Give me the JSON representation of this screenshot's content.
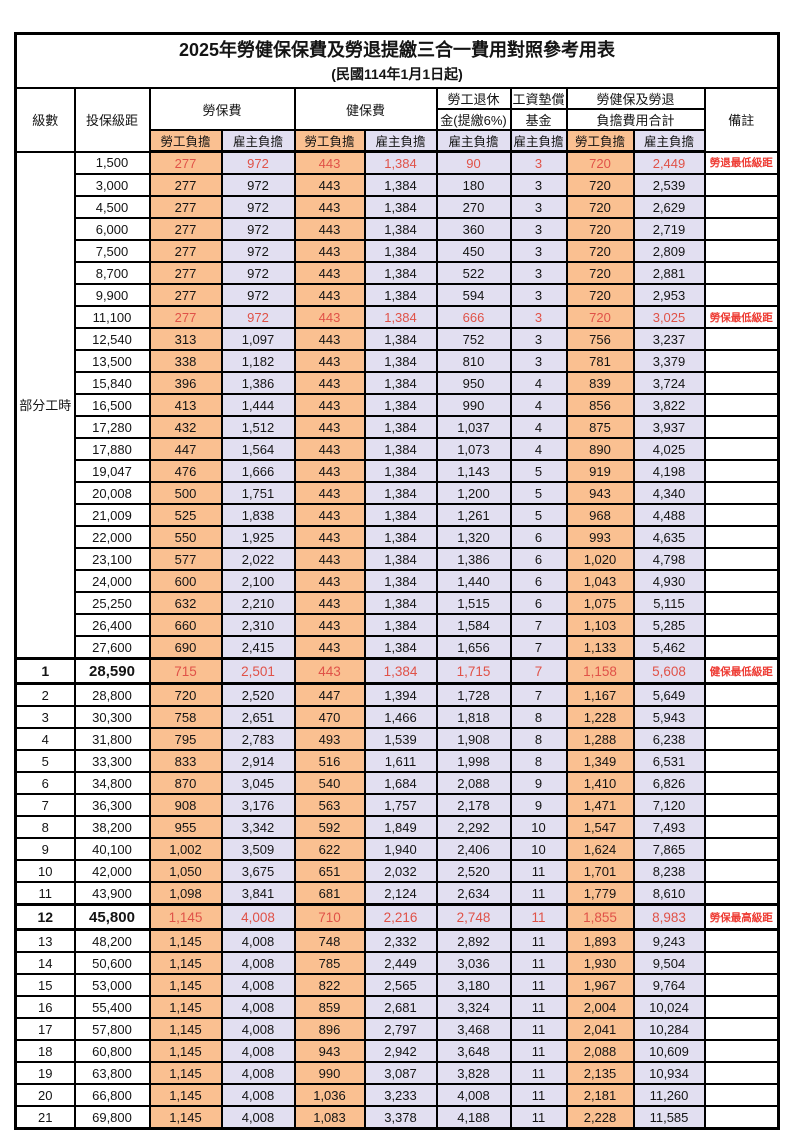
{
  "page": {
    "title": "2025年勞健保保費及勞退提繳三合一費用對照參考用表",
    "subtitle": "(民國114年1月1日起)"
  },
  "colors": {
    "employee_col_bg": "#FAC091",
    "employer_col_bg": "#E2DFF1",
    "highlight_value_red": "#E05248",
    "remark_red": "#EE3B33",
    "border_black": "#000000"
  },
  "table": {
    "headers": {
      "level": "級數",
      "salary": "投保級距",
      "labor": "勞保費",
      "health": "健保費",
      "pension_line1": "勞工退休",
      "pension_line2": "金(提繳6%)",
      "wage_fund_line1": "工資墊償",
      "wage_fund_line2": "基金",
      "total_line1": "勞健保及勞退",
      "total_line2": "負擔費用合計",
      "note": "備註"
    },
    "subheaders": {
      "employee": "勞工負擔",
      "employer": "雇主負擔"
    },
    "part_time_label": "部分工時",
    "part_time_row_count": 23,
    "rows": [
      {
        "level": "",
        "salary": "1,500",
        "lab_e": "277",
        "lab_r": "972",
        "hea_e": "443",
        "hea_r": "1,384",
        "pen": "90",
        "wage": "3",
        "tot_e": "720",
        "tot_r": "2,449",
        "note": "勞退最低級距",
        "red": true,
        "special": false
      },
      {
        "level": "",
        "salary": "3,000",
        "lab_e": "277",
        "lab_r": "972",
        "hea_e": "443",
        "hea_r": "1,384",
        "pen": "180",
        "wage": "3",
        "tot_e": "720",
        "tot_r": "2,539",
        "note": "",
        "red": false,
        "special": false
      },
      {
        "level": "",
        "salary": "4,500",
        "lab_e": "277",
        "lab_r": "972",
        "hea_e": "443",
        "hea_r": "1,384",
        "pen": "270",
        "wage": "3",
        "tot_e": "720",
        "tot_r": "2,629",
        "note": "",
        "red": false,
        "special": false
      },
      {
        "level": "",
        "salary": "6,000",
        "lab_e": "277",
        "lab_r": "972",
        "hea_e": "443",
        "hea_r": "1,384",
        "pen": "360",
        "wage": "3",
        "tot_e": "720",
        "tot_r": "2,719",
        "note": "",
        "red": false,
        "special": false
      },
      {
        "level": "",
        "salary": "7,500",
        "lab_e": "277",
        "lab_r": "972",
        "hea_e": "443",
        "hea_r": "1,384",
        "pen": "450",
        "wage": "3",
        "tot_e": "720",
        "tot_r": "2,809",
        "note": "",
        "red": false,
        "special": false
      },
      {
        "level": "",
        "salary": "8,700",
        "lab_e": "277",
        "lab_r": "972",
        "hea_e": "443",
        "hea_r": "1,384",
        "pen": "522",
        "wage": "3",
        "tot_e": "720",
        "tot_r": "2,881",
        "note": "",
        "red": false,
        "special": false
      },
      {
        "level": "",
        "salary": "9,900",
        "lab_e": "277",
        "lab_r": "972",
        "hea_e": "443",
        "hea_r": "1,384",
        "pen": "594",
        "wage": "3",
        "tot_e": "720",
        "tot_r": "2,953",
        "note": "",
        "red": false,
        "special": false
      },
      {
        "level": "",
        "salary": "11,100",
        "lab_e": "277",
        "lab_r": "972",
        "hea_e": "443",
        "hea_r": "1,384",
        "pen": "666",
        "wage": "3",
        "tot_e": "720",
        "tot_r": "3,025",
        "note": "勞保最低級距",
        "red": true,
        "special": false
      },
      {
        "level": "",
        "salary": "12,540",
        "lab_e": "313",
        "lab_r": "1,097",
        "hea_e": "443",
        "hea_r": "1,384",
        "pen": "752",
        "wage": "3",
        "tot_e": "756",
        "tot_r": "3,237",
        "note": "",
        "red": false,
        "special": false
      },
      {
        "level": "",
        "salary": "13,500",
        "lab_e": "338",
        "lab_r": "1,182",
        "hea_e": "443",
        "hea_r": "1,384",
        "pen": "810",
        "wage": "3",
        "tot_e": "781",
        "tot_r": "3,379",
        "note": "",
        "red": false,
        "special": false
      },
      {
        "level": "",
        "salary": "15,840",
        "lab_e": "396",
        "lab_r": "1,386",
        "hea_e": "443",
        "hea_r": "1,384",
        "pen": "950",
        "wage": "4",
        "tot_e": "839",
        "tot_r": "3,724",
        "note": "",
        "red": false,
        "special": false
      },
      {
        "level": "",
        "salary": "16,500",
        "lab_e": "413",
        "lab_r": "1,444",
        "hea_e": "443",
        "hea_r": "1,384",
        "pen": "990",
        "wage": "4",
        "tot_e": "856",
        "tot_r": "3,822",
        "note": "",
        "red": false,
        "special": false
      },
      {
        "level": "",
        "salary": "17,280",
        "lab_e": "432",
        "lab_r": "1,512",
        "hea_e": "443",
        "hea_r": "1,384",
        "pen": "1,037",
        "wage": "4",
        "tot_e": "875",
        "tot_r": "3,937",
        "note": "",
        "red": false,
        "special": false
      },
      {
        "level": "",
        "salary": "17,880",
        "lab_e": "447",
        "lab_r": "1,564",
        "hea_e": "443",
        "hea_r": "1,384",
        "pen": "1,073",
        "wage": "4",
        "tot_e": "890",
        "tot_r": "4,025",
        "note": "",
        "red": false,
        "special": false
      },
      {
        "level": "",
        "salary": "19,047",
        "lab_e": "476",
        "lab_r": "1,666",
        "hea_e": "443",
        "hea_r": "1,384",
        "pen": "1,143",
        "wage": "5",
        "tot_e": "919",
        "tot_r": "4,198",
        "note": "",
        "red": false,
        "special": false
      },
      {
        "level": "",
        "salary": "20,008",
        "lab_e": "500",
        "lab_r": "1,751",
        "hea_e": "443",
        "hea_r": "1,384",
        "pen": "1,200",
        "wage": "5",
        "tot_e": "943",
        "tot_r": "4,340",
        "note": "",
        "red": false,
        "special": false
      },
      {
        "level": "",
        "salary": "21,009",
        "lab_e": "525",
        "lab_r": "1,838",
        "hea_e": "443",
        "hea_r": "1,384",
        "pen": "1,261",
        "wage": "5",
        "tot_e": "968",
        "tot_r": "4,488",
        "note": "",
        "red": false,
        "special": false
      },
      {
        "level": "",
        "salary": "22,000",
        "lab_e": "550",
        "lab_r": "1,925",
        "hea_e": "443",
        "hea_r": "1,384",
        "pen": "1,320",
        "wage": "6",
        "tot_e": "993",
        "tot_r": "4,635",
        "note": "",
        "red": false,
        "special": false
      },
      {
        "level": "",
        "salary": "23,100",
        "lab_e": "577",
        "lab_r": "2,022",
        "hea_e": "443",
        "hea_r": "1,384",
        "pen": "1,386",
        "wage": "6",
        "tot_e": "1,020",
        "tot_r": "4,798",
        "note": "",
        "red": false,
        "special": false
      },
      {
        "level": "",
        "salary": "24,000",
        "lab_e": "600",
        "lab_r": "2,100",
        "hea_e": "443",
        "hea_r": "1,384",
        "pen": "1,440",
        "wage": "6",
        "tot_e": "1,043",
        "tot_r": "4,930",
        "note": "",
        "red": false,
        "special": false
      },
      {
        "level": "",
        "salary": "25,250",
        "lab_e": "632",
        "lab_r": "2,210",
        "hea_e": "443",
        "hea_r": "1,384",
        "pen": "1,515",
        "wage": "6",
        "tot_e": "1,075",
        "tot_r": "5,115",
        "note": "",
        "red": false,
        "special": false
      },
      {
        "level": "",
        "salary": "26,400",
        "lab_e": "660",
        "lab_r": "2,310",
        "hea_e": "443",
        "hea_r": "1,384",
        "pen": "1,584",
        "wage": "7",
        "tot_e": "1,103",
        "tot_r": "5,285",
        "note": "",
        "red": false,
        "special": false
      },
      {
        "level": "",
        "salary": "27,600",
        "lab_e": "690",
        "lab_r": "2,415",
        "hea_e": "443",
        "hea_r": "1,384",
        "pen": "1,656",
        "wage": "7",
        "tot_e": "1,133",
        "tot_r": "5,462",
        "note": "",
        "red": false,
        "special": false
      },
      {
        "level": "1",
        "salary": "28,590",
        "lab_e": "715",
        "lab_r": "2,501",
        "hea_e": "443",
        "hea_r": "1,384",
        "pen": "1,715",
        "wage": "7",
        "tot_e": "1,158",
        "tot_r": "5,608",
        "note": "健保最低級距",
        "red": true,
        "special": true
      },
      {
        "level": "2",
        "salary": "28,800",
        "lab_e": "720",
        "lab_r": "2,520",
        "hea_e": "447",
        "hea_r": "1,394",
        "pen": "1,728",
        "wage": "7",
        "tot_e": "1,167",
        "tot_r": "5,649",
        "note": "",
        "red": false,
        "special": false
      },
      {
        "level": "3",
        "salary": "30,300",
        "lab_e": "758",
        "lab_r": "2,651",
        "hea_e": "470",
        "hea_r": "1,466",
        "pen": "1,818",
        "wage": "8",
        "tot_e": "1,228",
        "tot_r": "5,943",
        "note": "",
        "red": false,
        "special": false
      },
      {
        "level": "4",
        "salary": "31,800",
        "lab_e": "795",
        "lab_r": "2,783",
        "hea_e": "493",
        "hea_r": "1,539",
        "pen": "1,908",
        "wage": "8",
        "tot_e": "1,288",
        "tot_r": "6,238",
        "note": "",
        "red": false,
        "special": false
      },
      {
        "level": "5",
        "salary": "33,300",
        "lab_e": "833",
        "lab_r": "2,914",
        "hea_e": "516",
        "hea_r": "1,611",
        "pen": "1,998",
        "wage": "8",
        "tot_e": "1,349",
        "tot_r": "6,531",
        "note": "",
        "red": false,
        "special": false
      },
      {
        "level": "6",
        "salary": "34,800",
        "lab_e": "870",
        "lab_r": "3,045",
        "hea_e": "540",
        "hea_r": "1,684",
        "pen": "2,088",
        "wage": "9",
        "tot_e": "1,410",
        "tot_r": "6,826",
        "note": "",
        "red": false,
        "special": false
      },
      {
        "level": "7",
        "salary": "36,300",
        "lab_e": "908",
        "lab_r": "3,176",
        "hea_e": "563",
        "hea_r": "1,757",
        "pen": "2,178",
        "wage": "9",
        "tot_e": "1,471",
        "tot_r": "7,120",
        "note": "",
        "red": false,
        "special": false
      },
      {
        "level": "8",
        "salary": "38,200",
        "lab_e": "955",
        "lab_r": "3,342",
        "hea_e": "592",
        "hea_r": "1,849",
        "pen": "2,292",
        "wage": "10",
        "tot_e": "1,547",
        "tot_r": "7,493",
        "note": "",
        "red": false,
        "special": false
      },
      {
        "level": "9",
        "salary": "40,100",
        "lab_e": "1,002",
        "lab_r": "3,509",
        "hea_e": "622",
        "hea_r": "1,940",
        "pen": "2,406",
        "wage": "10",
        "tot_e": "1,624",
        "tot_r": "7,865",
        "note": "",
        "red": false,
        "special": false
      },
      {
        "level": "10",
        "salary": "42,000",
        "lab_e": "1,050",
        "lab_r": "3,675",
        "hea_e": "651",
        "hea_r": "2,032",
        "pen": "2,520",
        "wage": "11",
        "tot_e": "1,701",
        "tot_r": "8,238",
        "note": "",
        "red": false,
        "special": false
      },
      {
        "level": "11",
        "salary": "43,900",
        "lab_e": "1,098",
        "lab_r": "3,841",
        "hea_e": "681",
        "hea_r": "2,124",
        "pen": "2,634",
        "wage": "11",
        "tot_e": "1,779",
        "tot_r": "8,610",
        "note": "",
        "red": false,
        "special": false
      },
      {
        "level": "12",
        "salary": "45,800",
        "lab_e": "1,145",
        "lab_r": "4,008",
        "hea_e": "710",
        "hea_r": "2,216",
        "pen": "2,748",
        "wage": "11",
        "tot_e": "1,855",
        "tot_r": "8,983",
        "note": "勞保最高級距",
        "red": true,
        "special": true
      },
      {
        "level": "13",
        "salary": "48,200",
        "lab_e": "1,145",
        "lab_r": "4,008",
        "hea_e": "748",
        "hea_r": "2,332",
        "pen": "2,892",
        "wage": "11",
        "tot_e": "1,893",
        "tot_r": "9,243",
        "note": "",
        "red": false,
        "special": false
      },
      {
        "level": "14",
        "salary": "50,600",
        "lab_e": "1,145",
        "lab_r": "4,008",
        "hea_e": "785",
        "hea_r": "2,449",
        "pen": "3,036",
        "wage": "11",
        "tot_e": "1,930",
        "tot_r": "9,504",
        "note": "",
        "red": false,
        "special": false
      },
      {
        "level": "15",
        "salary": "53,000",
        "lab_e": "1,145",
        "lab_r": "4,008",
        "hea_e": "822",
        "hea_r": "2,565",
        "pen": "3,180",
        "wage": "11",
        "tot_e": "1,967",
        "tot_r": "9,764",
        "note": "",
        "red": false,
        "special": false
      },
      {
        "level": "16",
        "salary": "55,400",
        "lab_e": "1,145",
        "lab_r": "4,008",
        "hea_e": "859",
        "hea_r": "2,681",
        "pen": "3,324",
        "wage": "11",
        "tot_e": "2,004",
        "tot_r": "10,024",
        "note": "",
        "red": false,
        "special": false
      },
      {
        "level": "17",
        "salary": "57,800",
        "lab_e": "1,145",
        "lab_r": "4,008",
        "hea_e": "896",
        "hea_r": "2,797",
        "pen": "3,468",
        "wage": "11",
        "tot_e": "2,041",
        "tot_r": "10,284",
        "note": "",
        "red": false,
        "special": false
      },
      {
        "level": "18",
        "salary": "60,800",
        "lab_e": "1,145",
        "lab_r": "4,008",
        "hea_e": "943",
        "hea_r": "2,942",
        "pen": "3,648",
        "wage": "11",
        "tot_e": "2,088",
        "tot_r": "10,609",
        "note": "",
        "red": false,
        "special": false
      },
      {
        "level": "19",
        "salary": "63,800",
        "lab_e": "1,145",
        "lab_r": "4,008",
        "hea_e": "990",
        "hea_r": "3,087",
        "pen": "3,828",
        "wage": "11",
        "tot_e": "2,135",
        "tot_r": "10,934",
        "note": "",
        "red": false,
        "special": false
      },
      {
        "level": "20",
        "salary": "66,800",
        "lab_e": "1,145",
        "lab_r": "4,008",
        "hea_e": "1,036",
        "hea_r": "3,233",
        "pen": "4,008",
        "wage": "11",
        "tot_e": "2,181",
        "tot_r": "11,260",
        "note": "",
        "red": false,
        "special": false
      },
      {
        "level": "21",
        "salary": "69,800",
        "lab_e": "1,145",
        "lab_r": "4,008",
        "hea_e": "1,083",
        "hea_r": "3,378",
        "pen": "4,188",
        "wage": "11",
        "tot_e": "2,228",
        "tot_r": "11,585",
        "note": "",
        "red": false,
        "special": false
      }
    ]
  }
}
